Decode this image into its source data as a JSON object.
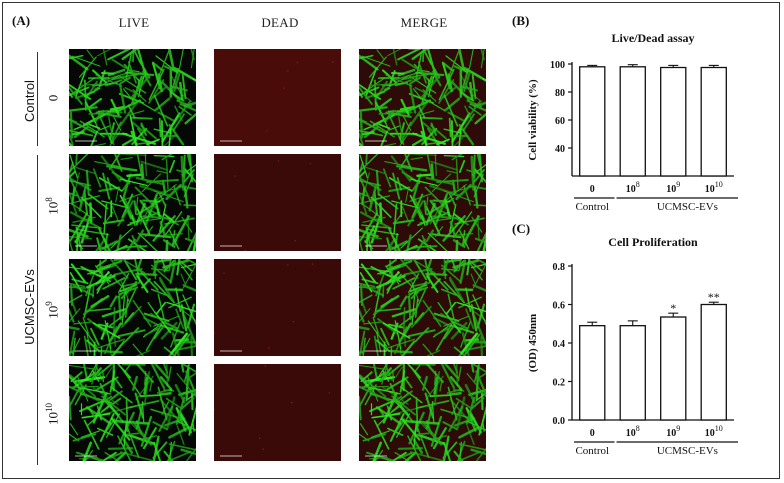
{
  "panels": {
    "a_label": "(A)",
    "b_label": "(B)",
    "c_label": "(C)"
  },
  "microscopy": {
    "columns": [
      "LIVE",
      "DEAD",
      "MERGE"
    ],
    "groups": {
      "control": "Control",
      "treated": "UCMSC-EVs"
    },
    "rows": [
      {
        "base": "0",
        "exp": ""
      },
      {
        "base": "10",
        "exp": "8"
      },
      {
        "base": "10",
        "exp": "9"
      },
      {
        "base": "10",
        "exp": "10"
      }
    ],
    "colors": {
      "live": "#22c31e",
      "dead_bg": "#3a0a08",
      "merge_bg": "#2e0b08"
    }
  },
  "chart_data": [
    {
      "type": "bar",
      "title": "Live/Dead assay",
      "ylabel": "Cell viability (%)",
      "xlabel": "",
      "categories": [
        {
          "base": "0",
          "exp": ""
        },
        {
          "base": "10",
          "exp": "8"
        },
        {
          "base": "10",
          "exp": "9"
        },
        {
          "base": "10",
          "exp": "10"
        }
      ],
      "values": [
        98,
        98,
        97.5,
        97.5
      ],
      "errors": [
        1,
        1.5,
        1.5,
        1.5
      ],
      "ylim": [
        20,
        100
      ],
      "yticks": [
        "40",
        "60",
        "80",
        "100"
      ],
      "ytick_values": [
        40,
        60,
        80,
        100
      ],
      "annotations": [
        "",
        "",
        "",
        ""
      ],
      "group_labels": {
        "control": "Control",
        "treated": "UCMSC-EVs"
      },
      "grid": false
    },
    {
      "type": "bar",
      "title": "Cell Proliferation",
      "ylabel": "(OD) 450nm",
      "xlabel": "",
      "categories": [
        {
          "base": "0",
          "exp": ""
        },
        {
          "base": "10",
          "exp": "8"
        },
        {
          "base": "10",
          "exp": "9"
        },
        {
          "base": "10",
          "exp": "10"
        }
      ],
      "values": [
        0.49,
        0.49,
        0.535,
        0.6
      ],
      "errors": [
        0.018,
        0.025,
        0.02,
        0.012
      ],
      "ylim": [
        0.0,
        0.8
      ],
      "yticks": [
        "0.0",
        "0.2",
        "0.4",
        "0.6",
        "0.8"
      ],
      "ytick_values": [
        0.0,
        0.2,
        0.4,
        0.6,
        0.8
      ],
      "annotations": [
        "",
        "",
        "*",
        "**"
      ],
      "group_labels": {
        "control": "Control",
        "treated": "UCMSC-EVs"
      },
      "grid": false
    }
  ]
}
